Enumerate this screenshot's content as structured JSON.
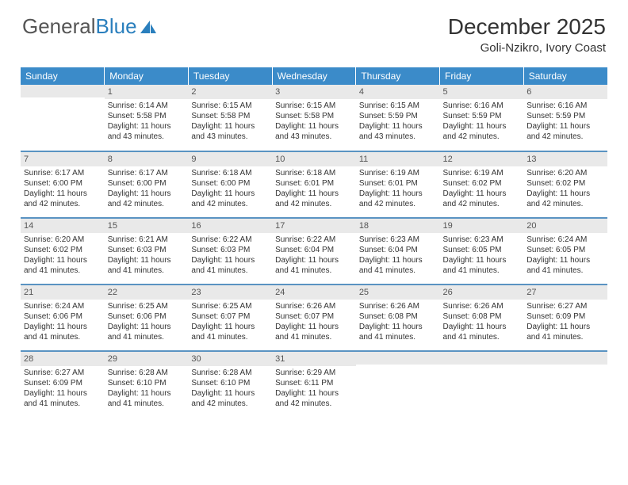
{
  "logo": {
    "text1": "General",
    "text2": "Blue"
  },
  "title": "December 2025",
  "subtitle": "Goli-Nzikro, Ivory Coast",
  "colors": {
    "header_bg": "#3b8bc9",
    "row_divider": "#5a93c2",
    "daynum_bg": "#e9e9e9",
    "logo_gray": "#555555",
    "logo_blue": "#2a7fbd"
  },
  "daysOfWeek": [
    "Sunday",
    "Monday",
    "Tuesday",
    "Wednesday",
    "Thursday",
    "Friday",
    "Saturday"
  ],
  "weeks": [
    [
      {
        "n": "",
        "sunrise": "",
        "sunset": "",
        "daylight": ""
      },
      {
        "n": "1",
        "sunrise": "6:14 AM",
        "sunset": "5:58 PM",
        "daylight": "11 hours and 43 minutes."
      },
      {
        "n": "2",
        "sunrise": "6:15 AM",
        "sunset": "5:58 PM",
        "daylight": "11 hours and 43 minutes."
      },
      {
        "n": "3",
        "sunrise": "6:15 AM",
        "sunset": "5:58 PM",
        "daylight": "11 hours and 43 minutes."
      },
      {
        "n": "4",
        "sunrise": "6:15 AM",
        "sunset": "5:59 PM",
        "daylight": "11 hours and 43 minutes."
      },
      {
        "n": "5",
        "sunrise": "6:16 AM",
        "sunset": "5:59 PM",
        "daylight": "11 hours and 42 minutes."
      },
      {
        "n": "6",
        "sunrise": "6:16 AM",
        "sunset": "5:59 PM",
        "daylight": "11 hours and 42 minutes."
      }
    ],
    [
      {
        "n": "7",
        "sunrise": "6:17 AM",
        "sunset": "6:00 PM",
        "daylight": "11 hours and 42 minutes."
      },
      {
        "n": "8",
        "sunrise": "6:17 AM",
        "sunset": "6:00 PM",
        "daylight": "11 hours and 42 minutes."
      },
      {
        "n": "9",
        "sunrise": "6:18 AM",
        "sunset": "6:00 PM",
        "daylight": "11 hours and 42 minutes."
      },
      {
        "n": "10",
        "sunrise": "6:18 AM",
        "sunset": "6:01 PM",
        "daylight": "11 hours and 42 minutes."
      },
      {
        "n": "11",
        "sunrise": "6:19 AM",
        "sunset": "6:01 PM",
        "daylight": "11 hours and 42 minutes."
      },
      {
        "n": "12",
        "sunrise": "6:19 AM",
        "sunset": "6:02 PM",
        "daylight": "11 hours and 42 minutes."
      },
      {
        "n": "13",
        "sunrise": "6:20 AM",
        "sunset": "6:02 PM",
        "daylight": "11 hours and 42 minutes."
      }
    ],
    [
      {
        "n": "14",
        "sunrise": "6:20 AM",
        "sunset": "6:02 PM",
        "daylight": "11 hours and 41 minutes."
      },
      {
        "n": "15",
        "sunrise": "6:21 AM",
        "sunset": "6:03 PM",
        "daylight": "11 hours and 41 minutes."
      },
      {
        "n": "16",
        "sunrise": "6:22 AM",
        "sunset": "6:03 PM",
        "daylight": "11 hours and 41 minutes."
      },
      {
        "n": "17",
        "sunrise": "6:22 AM",
        "sunset": "6:04 PM",
        "daylight": "11 hours and 41 minutes."
      },
      {
        "n": "18",
        "sunrise": "6:23 AM",
        "sunset": "6:04 PM",
        "daylight": "11 hours and 41 minutes."
      },
      {
        "n": "19",
        "sunrise": "6:23 AM",
        "sunset": "6:05 PM",
        "daylight": "11 hours and 41 minutes."
      },
      {
        "n": "20",
        "sunrise": "6:24 AM",
        "sunset": "6:05 PM",
        "daylight": "11 hours and 41 minutes."
      }
    ],
    [
      {
        "n": "21",
        "sunrise": "6:24 AM",
        "sunset": "6:06 PM",
        "daylight": "11 hours and 41 minutes."
      },
      {
        "n": "22",
        "sunrise": "6:25 AM",
        "sunset": "6:06 PM",
        "daylight": "11 hours and 41 minutes."
      },
      {
        "n": "23",
        "sunrise": "6:25 AM",
        "sunset": "6:07 PM",
        "daylight": "11 hours and 41 minutes."
      },
      {
        "n": "24",
        "sunrise": "6:26 AM",
        "sunset": "6:07 PM",
        "daylight": "11 hours and 41 minutes."
      },
      {
        "n": "25",
        "sunrise": "6:26 AM",
        "sunset": "6:08 PM",
        "daylight": "11 hours and 41 minutes."
      },
      {
        "n": "26",
        "sunrise": "6:26 AM",
        "sunset": "6:08 PM",
        "daylight": "11 hours and 41 minutes."
      },
      {
        "n": "27",
        "sunrise": "6:27 AM",
        "sunset": "6:09 PM",
        "daylight": "11 hours and 41 minutes."
      }
    ],
    [
      {
        "n": "28",
        "sunrise": "6:27 AM",
        "sunset": "6:09 PM",
        "daylight": "11 hours and 41 minutes."
      },
      {
        "n": "29",
        "sunrise": "6:28 AM",
        "sunset": "6:10 PM",
        "daylight": "11 hours and 41 minutes."
      },
      {
        "n": "30",
        "sunrise": "6:28 AM",
        "sunset": "6:10 PM",
        "daylight": "11 hours and 42 minutes."
      },
      {
        "n": "31",
        "sunrise": "6:29 AM",
        "sunset": "6:11 PM",
        "daylight": "11 hours and 42 minutes."
      },
      {
        "n": "",
        "sunrise": "",
        "sunset": "",
        "daylight": ""
      },
      {
        "n": "",
        "sunrise": "",
        "sunset": "",
        "daylight": ""
      },
      {
        "n": "",
        "sunrise": "",
        "sunset": "",
        "daylight": ""
      }
    ]
  ],
  "labels": {
    "sunrise": "Sunrise:",
    "sunset": "Sunset:",
    "daylight": "Daylight:"
  }
}
